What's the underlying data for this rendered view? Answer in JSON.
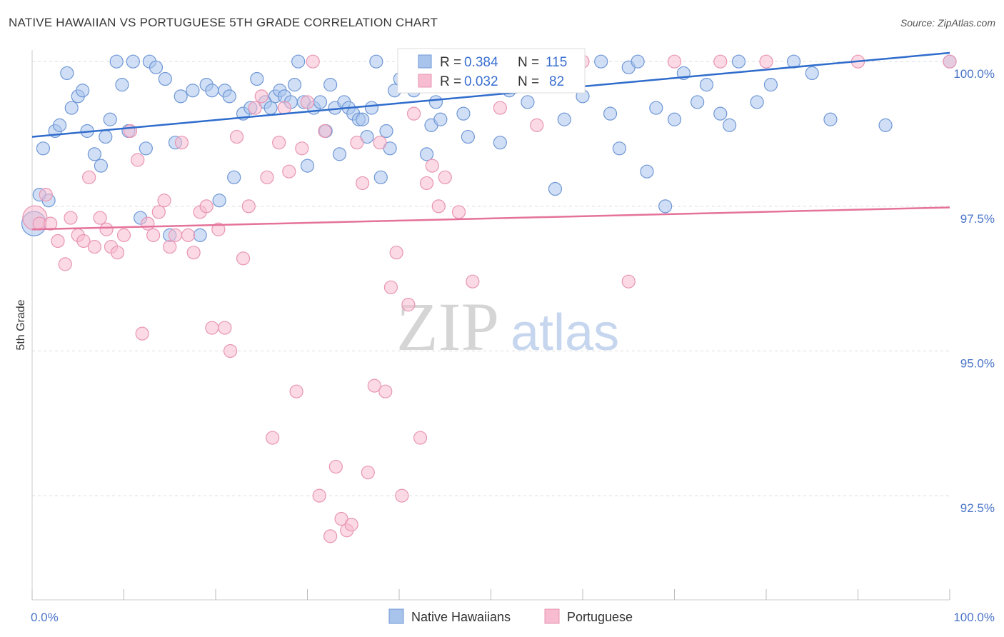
{
  "header": {
    "title": "NATIVE HAWAIIAN VS PORTUGUESE 5TH GRADE CORRELATION CHART",
    "source": "Source: ZipAtlas.com"
  },
  "watermark": {
    "zip": "ZIP",
    "atlas": "atlas"
  },
  "legend": {
    "rows": [
      {
        "r_label": "R =",
        "r_value": "0.384",
        "n_label": "N =",
        "n_value": "115"
      },
      {
        "r_label": "R =",
        "r_value": "0.032",
        "n_label": "N =",
        "n_value": "82"
      }
    ]
  },
  "bottom_legend": {
    "items": [
      {
        "label": "Native Hawaiians"
      },
      {
        "label": "Portuguese"
      }
    ]
  },
  "chart_data": {
    "type": "scatter",
    "title": "NATIVE HAWAIIAN VS PORTUGUESE 5TH GRADE CORRELATION CHART",
    "xlabel": "",
    "ylabel": "5th Grade",
    "xlim": [
      0,
      100
    ],
    "ylim": [
      90.7,
      100.2
    ],
    "x_tick_labels": [
      "0.0%",
      "100.0%"
    ],
    "y_ticks": [
      {
        "value": 100.0,
        "label": "100.0%"
      },
      {
        "value": 97.5,
        "label": "97.5%"
      },
      {
        "value": 95.0,
        "label": "95.0%"
      },
      {
        "value": 92.5,
        "label": "92.5%"
      }
    ],
    "grid": true,
    "legend_position": "top-center",
    "colors": {
      "native_fill": "#a9c4ec",
      "native_stroke": "#6f97d6",
      "native_line": "#2f6ccc",
      "portuguese_fill": "#f7bcd0",
      "portuguese_stroke": "#e895b3",
      "portuguese_line": "#e4729a",
      "tick_label": "#4a74c8",
      "grid": "#dddddd"
    },
    "series": [
      {
        "name": "Native Hawaiians",
        "r": 0.384,
        "n": 115,
        "trend": {
          "x": [
            0,
            100
          ],
          "y": [
            98.7,
            100.15
          ]
        },
        "points": [
          [
            0.2,
            97.2
          ],
          [
            0.8,
            97.7
          ],
          [
            1.2,
            98.5
          ],
          [
            1.8,
            97.6
          ],
          [
            2.5,
            98.8
          ],
          [
            3.0,
            98.9
          ],
          [
            3.8,
            99.8
          ],
          [
            4.3,
            99.2
          ],
          [
            5.0,
            99.4
          ],
          [
            5.5,
            99.5
          ],
          [
            6.0,
            98.8
          ],
          [
            6.8,
            98.4
          ],
          [
            7.5,
            98.2
          ],
          [
            8.0,
            98.7
          ],
          [
            8.5,
            99.0
          ],
          [
            9.2,
            100.0
          ],
          [
            9.8,
            99.6
          ],
          [
            10.5,
            98.8
          ],
          [
            11.0,
            100.0
          ],
          [
            11.8,
            97.3
          ],
          [
            12.4,
            98.5
          ],
          [
            12.8,
            100.0
          ],
          [
            13.5,
            99.9
          ],
          [
            14.5,
            99.7
          ],
          [
            15.0,
            97.0
          ],
          [
            15.6,
            98.6
          ],
          [
            16.2,
            99.4
          ],
          [
            17.5,
            99.5
          ],
          [
            18.3,
            97.0
          ],
          [
            19.0,
            99.6
          ],
          [
            19.6,
            99.5
          ],
          [
            20.4,
            97.6
          ],
          [
            21.0,
            99.5
          ],
          [
            21.5,
            99.4
          ],
          [
            22.0,
            98.0
          ],
          [
            23.0,
            99.1
          ],
          [
            23.8,
            99.2
          ],
          [
            24.5,
            99.7
          ],
          [
            25.4,
            99.3
          ],
          [
            26.0,
            99.2
          ],
          [
            26.5,
            99.4
          ],
          [
            27.0,
            99.5
          ],
          [
            27.5,
            99.4
          ],
          [
            28.2,
            99.3
          ],
          [
            28.6,
            99.6
          ],
          [
            29.0,
            100.0
          ],
          [
            29.6,
            99.3
          ],
          [
            30.0,
            98.2
          ],
          [
            30.7,
            99.2
          ],
          [
            31.4,
            99.3
          ],
          [
            32.0,
            98.8
          ],
          [
            32.5,
            99.6
          ],
          [
            33.0,
            99.2
          ],
          [
            33.5,
            98.4
          ],
          [
            34.0,
            99.3
          ],
          [
            34.5,
            99.2
          ],
          [
            35.0,
            99.1
          ],
          [
            35.6,
            99.0
          ],
          [
            36.0,
            99.0
          ],
          [
            36.5,
            98.7
          ],
          [
            37.0,
            99.2
          ],
          [
            37.5,
            100.0
          ],
          [
            38.0,
            98.0
          ],
          [
            38.6,
            98.8
          ],
          [
            39.0,
            98.5
          ],
          [
            39.5,
            99.5
          ],
          [
            40.1,
            99.7
          ],
          [
            40.6,
            100.0
          ],
          [
            41.2,
            99.8
          ],
          [
            41.6,
            99.5
          ],
          [
            42.0,
            99.7
          ],
          [
            42.5,
            100.0
          ],
          [
            43.0,
            98.4
          ],
          [
            43.5,
            98.9
          ],
          [
            44.0,
            99.3
          ],
          [
            44.5,
            99.0
          ],
          [
            45.0,
            100.0
          ],
          [
            46.0,
            99.6
          ],
          [
            47.0,
            99.1
          ],
          [
            47.5,
            98.7
          ],
          [
            48.0,
            100.0
          ],
          [
            48.5,
            100.0
          ],
          [
            49.0,
            99.7
          ],
          [
            50.0,
            100.0
          ],
          [
            51.0,
            98.6
          ],
          [
            52.0,
            99.5
          ],
          [
            53.0,
            100.0
          ],
          [
            54.0,
            99.3
          ],
          [
            55.0,
            100.0
          ],
          [
            56.0,
            99.6
          ],
          [
            57.0,
            97.8
          ],
          [
            58.0,
            99.0
          ],
          [
            59.0,
            100.0
          ],
          [
            60.0,
            99.4
          ],
          [
            62.0,
            100.0
          ],
          [
            63.0,
            99.1
          ],
          [
            64.0,
            98.5
          ],
          [
            65.0,
            99.9
          ],
          [
            66.0,
            100.0
          ],
          [
            67.0,
            98.1
          ],
          [
            68.0,
            99.2
          ],
          [
            69.0,
            97.5
          ],
          [
            70.0,
            99.0
          ],
          [
            71.0,
            99.8
          ],
          [
            72.5,
            99.3
          ],
          [
            73.5,
            99.6
          ],
          [
            75.0,
            99.1
          ],
          [
            76.0,
            98.9
          ],
          [
            77.0,
            100.0
          ],
          [
            79.0,
            99.3
          ],
          [
            80.5,
            99.6
          ],
          [
            83.0,
            100.0
          ],
          [
            85.0,
            99.8
          ],
          [
            87.0,
            99.0
          ],
          [
            93.0,
            98.9
          ],
          [
            100.0,
            100.0
          ]
        ]
      },
      {
        "name": "Portuguese",
        "r": 0.032,
        "n": 82,
        "trend": {
          "x": [
            0,
            100
          ],
          "y": [
            97.1,
            97.48
          ]
        },
        "points": [
          [
            0.3,
            97.3
          ],
          [
            0.8,
            97.2
          ],
          [
            1.5,
            97.7
          ],
          [
            2.0,
            97.2
          ],
          [
            2.8,
            96.9
          ],
          [
            3.6,
            96.5
          ],
          [
            4.2,
            97.3
          ],
          [
            5.0,
            97.0
          ],
          [
            5.6,
            96.9
          ],
          [
            6.2,
            98.0
          ],
          [
            6.8,
            96.8
          ],
          [
            7.4,
            97.3
          ],
          [
            8.1,
            97.1
          ],
          [
            8.6,
            96.8
          ],
          [
            9.3,
            96.7
          ],
          [
            10.0,
            97.0
          ],
          [
            10.7,
            98.8
          ],
          [
            11.5,
            98.3
          ],
          [
            12.0,
            95.3
          ],
          [
            12.6,
            97.2
          ],
          [
            13.2,
            97.0
          ],
          [
            13.8,
            97.4
          ],
          [
            14.4,
            97.6
          ],
          [
            15.0,
            96.8
          ],
          [
            15.6,
            97.0
          ],
          [
            16.3,
            98.6
          ],
          [
            17.0,
            97.0
          ],
          [
            17.6,
            96.7
          ],
          [
            18.3,
            97.4
          ],
          [
            19.0,
            97.5
          ],
          [
            19.6,
            95.4
          ],
          [
            20.3,
            97.1
          ],
          [
            21.0,
            95.4
          ],
          [
            21.6,
            95.0
          ],
          [
            22.3,
            98.7
          ],
          [
            23.0,
            96.6
          ],
          [
            23.6,
            97.5
          ],
          [
            24.3,
            99.2
          ],
          [
            25.0,
            99.4
          ],
          [
            25.6,
            98.0
          ],
          [
            26.2,
            93.5
          ],
          [
            26.9,
            98.6
          ],
          [
            27.5,
            99.2
          ],
          [
            28.0,
            98.1
          ],
          [
            28.8,
            94.3
          ],
          [
            29.4,
            98.5
          ],
          [
            30.0,
            99.3
          ],
          [
            30.6,
            100.0
          ],
          [
            31.3,
            92.5
          ],
          [
            31.9,
            98.8
          ],
          [
            32.5,
            91.8
          ],
          [
            33.1,
            93.0
          ],
          [
            33.7,
            92.1
          ],
          [
            34.3,
            91.9
          ],
          [
            34.8,
            92.0
          ],
          [
            35.4,
            98.6
          ],
          [
            36.0,
            97.9
          ],
          [
            36.6,
            92.9
          ],
          [
            37.3,
            94.4
          ],
          [
            37.9,
            98.6
          ],
          [
            38.5,
            94.3
          ],
          [
            39.1,
            96.1
          ],
          [
            39.7,
            96.7
          ],
          [
            40.3,
            92.5
          ],
          [
            41.0,
            95.8
          ],
          [
            41.6,
            99.1
          ],
          [
            42.3,
            93.5
          ],
          [
            43.0,
            97.9
          ],
          [
            43.6,
            98.2
          ],
          [
            44.3,
            97.5
          ],
          [
            45.0,
            98.0
          ],
          [
            46.5,
            97.4
          ],
          [
            48.0,
            96.2
          ],
          [
            51.0,
            99.2
          ],
          [
            55.0,
            98.9
          ],
          [
            60.0,
            100.0
          ],
          [
            65.0,
            96.2
          ],
          [
            70.0,
            100.0
          ],
          [
            75.0,
            100.0
          ],
          [
            80.0,
            100.0
          ],
          [
            90.0,
            100.0
          ],
          [
            100.0,
            100.0
          ]
        ]
      }
    ]
  }
}
